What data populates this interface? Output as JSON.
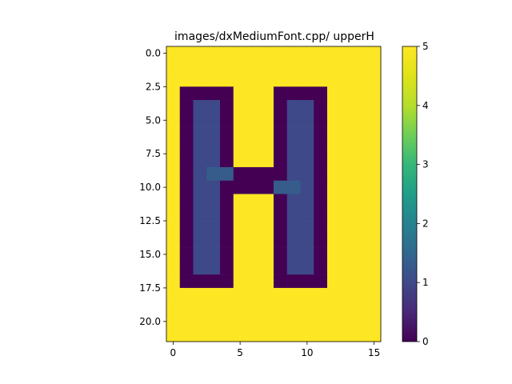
{
  "chart_data": {
    "type": "heatmap",
    "title": "images/dxMediumFont.cpp/ upperH",
    "xlabel": "",
    "ylabel": "",
    "rows": 22,
    "cols": 16,
    "x_range": [
      -0.5,
      15.5
    ],
    "y_range": [
      21.5,
      -0.5
    ],
    "x_ticks": [
      0,
      5,
      10,
      15
    ],
    "x_tick_labels": [
      "0",
      "5",
      "10",
      "15"
    ],
    "y_ticks": [
      0,
      2.5,
      5,
      7.5,
      10,
      12.5,
      15,
      17.5,
      20
    ],
    "y_tick_labels": [
      "0.0",
      "2.5",
      "5.0",
      "7.5",
      "10.0",
      "12.5",
      "15.0",
      "17.5",
      "20.0"
    ],
    "colorbar": {
      "range": [
        0,
        5
      ],
      "ticks": [
        0,
        1,
        2,
        3,
        4,
        5
      ],
      "tick_labels": [
        "0",
        "1",
        "2",
        "3",
        "4",
        "5"
      ],
      "colormap": "viridis"
    },
    "grid": false,
    "matrix": [
      [
        5,
        5,
        5,
        5,
        5,
        5,
        5,
        5,
        5,
        5,
        5,
        5,
        5,
        5,
        5,
        5
      ],
      [
        5,
        5,
        5,
        5,
        5,
        5,
        5,
        5,
        5,
        5,
        5,
        5,
        5,
        5,
        5,
        5
      ],
      [
        5,
        5,
        5,
        5,
        5,
        5,
        5,
        5,
        5,
        5,
        5,
        5,
        5,
        5,
        5,
        5
      ],
      [
        5,
        0,
        0,
        0,
        0,
        5,
        5,
        5,
        0,
        0,
        0,
        0,
        5,
        5,
        5,
        5
      ],
      [
        5,
        0,
        1,
        1,
        0,
        5,
        5,
        5,
        0,
        1,
        1,
        0,
        5,
        5,
        5,
        5
      ],
      [
        5,
        0,
        1,
        1,
        0,
        5,
        5,
        5,
        0,
        1,
        1,
        0,
        5,
        5,
        5,
        5
      ],
      [
        5,
        0,
        1,
        1,
        0,
        5,
        5,
        5,
        0,
        1,
        1,
        0,
        5,
        5,
        5,
        5
      ],
      [
        5,
        0,
        1,
        1,
        0,
        5,
        5,
        5,
        0,
        1,
        1,
        0,
        5,
        5,
        5,
        5
      ],
      [
        5,
        0,
        1,
        1,
        0,
        5,
        5,
        5,
        0,
        1,
        1,
        0,
        5,
        5,
        5,
        5
      ],
      [
        5,
        0,
        1,
        1.3,
        1.3,
        0,
        0,
        0,
        0,
        1,
        1,
        0,
        5,
        5,
        5,
        5
      ],
      [
        5,
        0,
        1,
        1,
        0,
        0,
        0,
        0,
        1.3,
        1.3,
        1,
        0,
        5,
        5,
        5,
        5
      ],
      [
        5,
        0,
        1,
        1,
        0,
        5,
        5,
        5,
        0,
        1,
        1,
        0,
        5,
        5,
        5,
        5
      ],
      [
        5,
        0,
        1,
        1,
        0,
        5,
        5,
        5,
        0,
        1,
        1,
        0,
        5,
        5,
        5,
        5
      ],
      [
        5,
        0,
        1,
        1,
        0,
        5,
        5,
        5,
        0,
        1,
        1,
        0,
        5,
        5,
        5,
        5
      ],
      [
        5,
        0,
        1,
        1,
        0,
        5,
        5,
        5,
        0,
        1,
        1,
        0,
        5,
        5,
        5,
        5
      ],
      [
        5,
        0,
        1,
        1,
        0,
        5,
        5,
        5,
        0,
        1,
        1,
        0,
        5,
        5,
        5,
        5
      ],
      [
        5,
        0,
        1,
        1,
        0,
        5,
        5,
        5,
        0,
        1,
        1,
        0,
        5,
        5,
        5,
        5
      ],
      [
        5,
        0,
        0,
        0,
        0,
        5,
        5,
        5,
        0,
        0,
        0,
        0,
        5,
        5,
        5,
        5
      ],
      [
        5,
        5,
        5,
        5,
        5,
        5,
        5,
        5,
        5,
        5,
        5,
        5,
        5,
        5,
        5,
        5
      ],
      [
        5,
        5,
        5,
        5,
        5,
        5,
        5,
        5,
        5,
        5,
        5,
        5,
        5,
        5,
        5,
        5
      ],
      [
        5,
        5,
        5,
        5,
        5,
        5,
        5,
        5,
        5,
        5,
        5,
        5,
        5,
        5,
        5,
        5
      ],
      [
        5,
        5,
        5,
        5,
        5,
        5,
        5,
        5,
        5,
        5,
        5,
        5,
        5,
        5,
        5,
        5
      ]
    ]
  }
}
